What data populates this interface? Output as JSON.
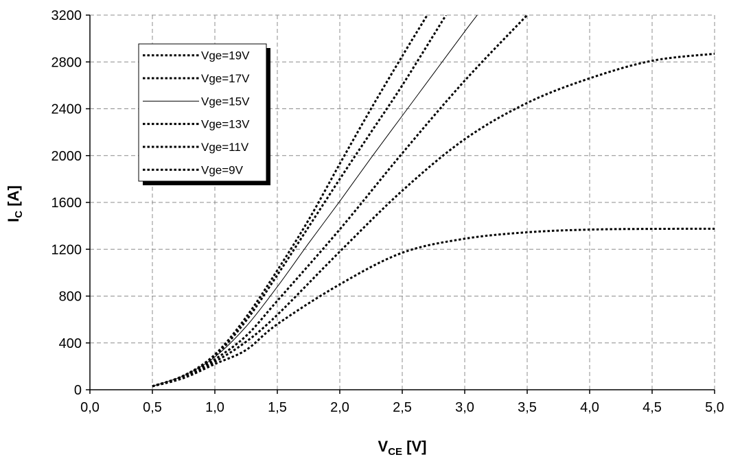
{
  "chart_data": {
    "type": "line",
    "title": "",
    "xlabel": {
      "main": "V",
      "sub": "CE",
      "unit": " [V]"
    },
    "ylabel": {
      "main": "I",
      "sub": "C",
      "unit": " [A]"
    },
    "xlim": [
      0,
      5
    ],
    "ylim": [
      0,
      3200
    ],
    "x_ticks": [
      "0,0",
      "0,5",
      "1,0",
      "1,5",
      "2,0",
      "2,5",
      "3,0",
      "3,5",
      "4,0",
      "4,5",
      "5,0"
    ],
    "y_ticks": [
      "0",
      "400",
      "800",
      "1200",
      "1600",
      "2000",
      "2400",
      "2800",
      "3200"
    ],
    "grid": true,
    "legend_position": "top-left",
    "series": [
      {
        "name": "Vge=19V",
        "style": "dotted",
        "x": [
          0.5,
          0.75,
          1.0,
          1.25,
          1.5,
          1.75,
          2.0,
          2.25,
          2.5,
          2.7
        ],
        "y": [
          30,
          120,
          300,
          620,
          1020,
          1450,
          1930,
          2400,
          2850,
          3200
        ]
      },
      {
        "name": "Vge=17V",
        "style": "dotted",
        "x": [
          0.5,
          0.75,
          1.0,
          1.25,
          1.5,
          1.75,
          2.0,
          2.25,
          2.5,
          2.85
        ],
        "y": [
          30,
          120,
          290,
          590,
          980,
          1390,
          1800,
          2200,
          2600,
          3200
        ]
      },
      {
        "name": "Vge=15V",
        "style": "solid",
        "x": [
          0.5,
          0.75,
          1.0,
          1.25,
          1.5,
          1.75,
          2.0,
          2.25,
          2.5,
          2.75,
          3.0,
          3.1
        ],
        "y": [
          30,
          120,
          280,
          540,
          880,
          1250,
          1610,
          1980,
          2340,
          2700,
          3060,
          3200
        ]
      },
      {
        "name": "Vge=13V",
        "style": "dotted",
        "x": [
          0.5,
          0.75,
          1.0,
          1.25,
          1.5,
          2.0,
          2.5,
          3.0,
          3.5
        ],
        "y": [
          30,
          110,
          260,
          460,
          760,
          1370,
          2020,
          2640,
          3200
        ]
      },
      {
        "name": "Vge=11V",
        "style": "dotted",
        "x": [
          0.5,
          0.75,
          1.0,
          1.25,
          1.5,
          2.0,
          2.5,
          3.0,
          3.5,
          4.0,
          4.5,
          5.0
        ],
        "y": [
          30,
          110,
          240,
          410,
          640,
          1180,
          1700,
          2140,
          2450,
          2660,
          2810,
          2870
        ]
      },
      {
        "name": "Vge=9V",
        "style": "dotted",
        "x": [
          0.5,
          0.75,
          1.0,
          1.25,
          1.5,
          2.0,
          2.5,
          3.0,
          3.5,
          4.0,
          4.5,
          5.0
        ],
        "y": [
          30,
          100,
          220,
          340,
          560,
          900,
          1170,
          1290,
          1345,
          1368,
          1374,
          1375
        ]
      }
    ]
  }
}
